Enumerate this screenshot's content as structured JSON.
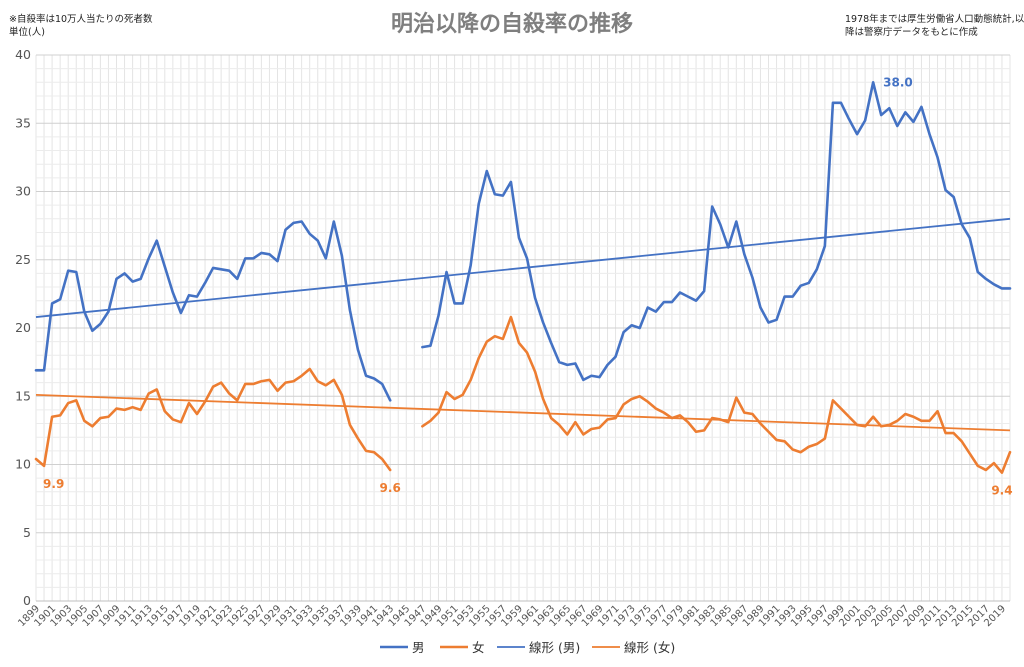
{
  "chart_data": {
    "type": "line",
    "title": "明治以降の自殺率の推移",
    "note_left": [
      "※自殺率は10万人当たりの死者数",
      "単位(人)"
    ],
    "note_right": [
      "1978年までは厚生労働省人口動態統計,以",
      "降は警察庁データをもとに作成"
    ],
    "xlabel": "",
    "ylabel": "",
    "ylim": [
      0,
      40
    ],
    "yticks": [
      0,
      5,
      10,
      15,
      20,
      25,
      30,
      35,
      40
    ],
    "xlim": [
      1899,
      2020
    ],
    "xtick_start": 1899,
    "xtick_end": 2019,
    "xtick_step": 2,
    "grid": true,
    "legend_position": "bottom",
    "series": [
      {
        "name": "男",
        "color": "#4472c4",
        "points": [
          [
            1899,
            16.9
          ],
          [
            1900,
            16.9
          ],
          [
            1901,
            21.8
          ],
          [
            1902,
            22.1
          ],
          [
            1903,
            24.2
          ],
          [
            1904,
            24.1
          ],
          [
            1905,
            21.2
          ],
          [
            1906,
            19.8
          ],
          [
            1907,
            20.3
          ],
          [
            1908,
            21.2
          ],
          [
            1909,
            23.6
          ],
          [
            1910,
            24.0
          ],
          [
            1911,
            23.4
          ],
          [
            1912,
            23.6
          ],
          [
            1913,
            25.1
          ],
          [
            1914,
            26.4
          ],
          [
            1915,
            24.5
          ],
          [
            1916,
            22.6
          ],
          [
            1917,
            21.1
          ],
          [
            1918,
            22.4
          ],
          [
            1919,
            22.3
          ],
          [
            1920,
            23.3
          ],
          [
            1921,
            24.4
          ],
          [
            1922,
            24.3
          ],
          [
            1923,
            24.2
          ],
          [
            1924,
            23.6
          ],
          [
            1925,
            25.1
          ],
          [
            1926,
            25.1
          ],
          [
            1927,
            25.5
          ],
          [
            1928,
            25.4
          ],
          [
            1929,
            24.9
          ],
          [
            1930,
            27.2
          ],
          [
            1931,
            27.7
          ],
          [
            1932,
            27.8
          ],
          [
            1933,
            26.9
          ],
          [
            1934,
            26.4
          ],
          [
            1935,
            25.1
          ],
          [
            1936,
            27.8
          ],
          [
            1937,
            25.3
          ],
          [
            1938,
            21.3
          ],
          [
            1939,
            18.4
          ],
          [
            1940,
            16.5
          ],
          [
            1941,
            16.3
          ],
          [
            1942,
            15.9
          ],
          [
            1943,
            14.7
          ],
          null,
          [
            1947,
            18.6
          ],
          [
            1948,
            18.7
          ],
          [
            1949,
            20.9
          ],
          [
            1950,
            24.1
          ],
          [
            1951,
            21.8
          ],
          [
            1952,
            21.8
          ],
          [
            1953,
            24.6
          ],
          [
            1954,
            29.1
          ],
          [
            1955,
            31.5
          ],
          [
            1956,
            29.8
          ],
          [
            1957,
            29.7
          ],
          [
            1958,
            30.7
          ],
          [
            1959,
            26.6
          ],
          [
            1960,
            25.1
          ],
          [
            1961,
            22.2
          ],
          [
            1962,
            20.4
          ],
          [
            1963,
            18.9
          ],
          [
            1964,
            17.5
          ],
          [
            1965,
            17.3
          ],
          [
            1966,
            17.4
          ],
          [
            1967,
            16.2
          ],
          [
            1968,
            16.5
          ],
          [
            1969,
            16.4
          ],
          [
            1970,
            17.3
          ],
          [
            1971,
            17.9
          ],
          [
            1972,
            19.7
          ],
          [
            1973,
            20.2
          ],
          [
            1974,
            20.0
          ],
          [
            1975,
            21.5
          ],
          [
            1976,
            21.2
          ],
          [
            1977,
            21.9
          ],
          [
            1978,
            21.9
          ],
          [
            1979,
            22.6
          ],
          [
            1980,
            22.3
          ],
          [
            1981,
            22.0
          ],
          [
            1982,
            22.7
          ],
          [
            1983,
            28.9
          ],
          [
            1984,
            27.6
          ],
          [
            1985,
            25.9
          ],
          [
            1986,
            27.8
          ],
          [
            1987,
            25.4
          ],
          [
            1988,
            23.7
          ],
          [
            1989,
            21.5
          ],
          [
            1990,
            20.4
          ],
          [
            1991,
            20.6
          ],
          [
            1992,
            22.3
          ],
          [
            1993,
            22.3
          ],
          [
            1994,
            23.1
          ],
          [
            1995,
            23.3
          ],
          [
            1996,
            24.3
          ],
          [
            1997,
            26.0
          ],
          [
            1998,
            36.5
          ],
          [
            1999,
            36.5
          ],
          [
            2000,
            35.3
          ],
          [
            2001,
            34.2
          ],
          [
            2002,
            35.2
          ],
          [
            2003,
            38.0
          ],
          [
            2004,
            35.6
          ],
          [
            2005,
            36.1
          ],
          [
            2006,
            34.8
          ],
          [
            2007,
            35.8
          ],
          [
            2008,
            35.1
          ],
          [
            2009,
            36.2
          ],
          [
            2010,
            34.2
          ],
          [
            2011,
            32.5
          ],
          [
            2012,
            30.1
          ],
          [
            2013,
            29.6
          ],
          [
            2014,
            27.6
          ],
          [
            2015,
            26.6
          ],
          [
            2016,
            24.1
          ],
          [
            2017,
            23.6
          ],
          [
            2018,
            23.2
          ],
          [
            2019,
            22.9
          ],
          [
            2020,
            22.9
          ]
        ]
      },
      {
        "name": "女",
        "color": "#ed7d31",
        "points": [
          [
            1899,
            10.4
          ],
          [
            1900,
            9.9
          ],
          [
            1901,
            13.5
          ],
          [
            1902,
            13.6
          ],
          [
            1903,
            14.5
          ],
          [
            1904,
            14.7
          ],
          [
            1905,
            13.2
          ],
          [
            1906,
            12.8
          ],
          [
            1907,
            13.4
          ],
          [
            1908,
            13.5
          ],
          [
            1909,
            14.1
          ],
          [
            1910,
            14.0
          ],
          [
            1911,
            14.2
          ],
          [
            1912,
            14.0
          ],
          [
            1913,
            15.2
          ],
          [
            1914,
            15.5
          ],
          [
            1915,
            13.9
          ],
          [
            1916,
            13.3
          ],
          [
            1917,
            13.1
          ],
          [
            1918,
            14.5
          ],
          [
            1919,
            13.7
          ],
          [
            1920,
            14.6
          ],
          [
            1921,
            15.7
          ],
          [
            1922,
            16.0
          ],
          [
            1923,
            15.2
          ],
          [
            1924,
            14.7
          ],
          [
            1925,
            15.9
          ],
          [
            1926,
            15.9
          ],
          [
            1927,
            16.1
          ],
          [
            1928,
            16.2
          ],
          [
            1929,
            15.4
          ],
          [
            1930,
            16.0
          ],
          [
            1931,
            16.1
          ],
          [
            1932,
            16.5
          ],
          [
            1933,
            17.0
          ],
          [
            1934,
            16.1
          ],
          [
            1935,
            15.8
          ],
          [
            1936,
            16.2
          ],
          [
            1937,
            15.1
          ],
          [
            1938,
            12.9
          ],
          [
            1939,
            11.9
          ],
          [
            1940,
            11.0
          ],
          [
            1941,
            10.9
          ],
          [
            1942,
            10.4
          ],
          [
            1943,
            9.6
          ],
          null,
          [
            1947,
            12.8
          ],
          [
            1948,
            13.2
          ],
          [
            1949,
            13.8
          ],
          [
            1950,
            15.3
          ],
          [
            1951,
            14.8
          ],
          [
            1952,
            15.1
          ],
          [
            1953,
            16.2
          ],
          [
            1954,
            17.8
          ],
          [
            1955,
            19.0
          ],
          [
            1956,
            19.4
          ],
          [
            1957,
            19.2
          ],
          [
            1958,
            20.8
          ],
          [
            1959,
            18.9
          ],
          [
            1960,
            18.2
          ],
          [
            1961,
            16.8
          ],
          [
            1962,
            14.8
          ],
          [
            1963,
            13.4
          ],
          [
            1964,
            12.9
          ],
          [
            1965,
            12.2
          ],
          [
            1966,
            13.1
          ],
          [
            1967,
            12.2
          ],
          [
            1968,
            12.6
          ],
          [
            1969,
            12.7
          ],
          [
            1970,
            13.3
          ],
          [
            1971,
            13.4
          ],
          [
            1972,
            14.4
          ],
          [
            1973,
            14.8
          ],
          [
            1974,
            15.0
          ],
          [
            1975,
            14.6
          ],
          [
            1976,
            14.1
          ],
          [
            1977,
            13.8
          ],
          [
            1978,
            13.4
          ],
          [
            1979,
            13.6
          ],
          [
            1980,
            13.1
          ],
          [
            1981,
            12.4
          ],
          [
            1982,
            12.5
          ],
          [
            1983,
            13.4
          ],
          [
            1984,
            13.3
          ],
          [
            1985,
            13.1
          ],
          [
            1986,
            14.9
          ],
          [
            1987,
            13.8
          ],
          [
            1988,
            13.7
          ],
          [
            1989,
            13.0
          ],
          [
            1990,
            12.4
          ],
          [
            1991,
            11.8
          ],
          [
            1992,
            11.7
          ],
          [
            1993,
            11.1
          ],
          [
            1994,
            10.9
          ],
          [
            1995,
            11.3
          ],
          [
            1996,
            11.5
          ],
          [
            1997,
            11.9
          ],
          [
            1998,
            14.7
          ],
          [
            1999,
            14.1
          ],
          [
            2000,
            13.5
          ],
          [
            2001,
            12.9
          ],
          [
            2002,
            12.8
          ],
          [
            2003,
            13.5
          ],
          [
            2004,
            12.8
          ],
          [
            2005,
            12.9
          ],
          [
            2006,
            13.2
          ],
          [
            2007,
            13.7
          ],
          [
            2008,
            13.5
          ],
          [
            2009,
            13.2
          ],
          [
            2010,
            13.2
          ],
          [
            2011,
            13.9
          ],
          [
            2012,
            12.3
          ],
          [
            2013,
            12.3
          ],
          [
            2014,
            11.7
          ],
          [
            2015,
            10.8
          ],
          [
            2016,
            9.9
          ],
          [
            2017,
            9.6
          ],
          [
            2018,
            10.1
          ],
          [
            2019,
            9.4
          ],
          [
            2020,
            10.9
          ]
        ]
      }
    ],
    "trendlines": [
      {
        "name": "線形 (男)",
        "color": "#4472c4",
        "start": [
          1899,
          20.8
        ],
        "end": [
          2020,
          28.0
        ]
      },
      {
        "name": "線形 (女)",
        "color": "#ed7d31",
        "start": [
          1899,
          15.1
        ],
        "end": [
          2020,
          12.5
        ]
      }
    ],
    "annotations": [
      {
        "text": "38.0",
        "x": 2003,
        "y": 38.0,
        "color": "#4472c4",
        "placement": "right"
      },
      {
        "text": "9.9",
        "x": 1900,
        "y": 9.9,
        "color": "#ed7d31",
        "placement": "below"
      },
      {
        "text": "9.6",
        "x": 1943,
        "y": 9.6,
        "color": "#ed7d31",
        "placement": "below"
      },
      {
        "text": "9.4",
        "x": 2019,
        "y": 9.4,
        "color": "#ed7d31",
        "placement": "below"
      }
    ]
  }
}
